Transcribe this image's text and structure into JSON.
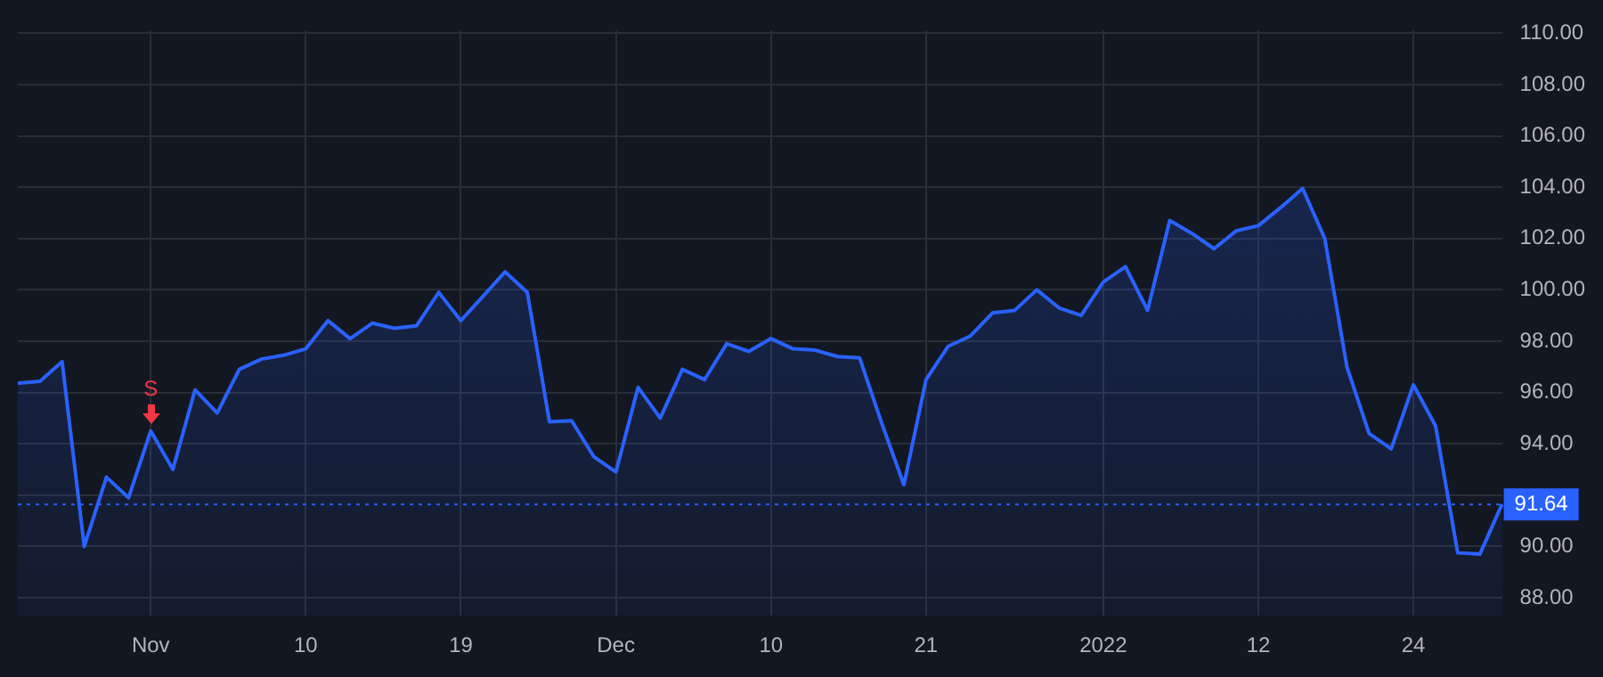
{
  "chart_data": {
    "type": "area",
    "categories": [
      null,
      null,
      null,
      null,
      null,
      null,
      "Nov",
      null,
      null,
      null,
      null,
      null,
      null,
      "10",
      null,
      null,
      null,
      null,
      null,
      null,
      "19",
      null,
      null,
      null,
      null,
      null,
      null,
      "Dec",
      null,
      null,
      null,
      null,
      null,
      null,
      "10",
      null,
      null,
      null,
      null,
      null,
      null,
      "21",
      null,
      null,
      null,
      null,
      null,
      null,
      null,
      "2022",
      null,
      null,
      null,
      null,
      null,
      null,
      "12",
      null,
      null,
      null,
      null,
      null,
      null,
      "24",
      null,
      null,
      null,
      null
    ],
    "series": [
      {
        "color": "#2962ff",
        "values": [
          96.36,
          96.44,
          97.2,
          90.0,
          92.7,
          91.9,
          94.5,
          93.0,
          96.1,
          95.2,
          96.9,
          97.3,
          97.45,
          97.7,
          98.8,
          98.1,
          98.7,
          98.5,
          98.6,
          99.9,
          98.8,
          99.75,
          100.7,
          99.9,
          94.86,
          94.9,
          93.5,
          92.9,
          96.2,
          95.0,
          96.9,
          96.5,
          97.9,
          97.6,
          98.1,
          97.7,
          97.65,
          97.4,
          97.35,
          94.8,
          92.4,
          96.5,
          97.8,
          98.2,
          99.1,
          99.2,
          100.0,
          99.3,
          99.0,
          100.3,
          100.9,
          99.2,
          102.7,
          102.2,
          101.6,
          102.3,
          102.5,
          103.2,
          103.95,
          102.0,
          97.0,
          94.4,
          93.8,
          96.3,
          94.7,
          89.75,
          89.7,
          91.64
        ]
      }
    ],
    "ylim": [
      87.3,
      110.1
    ],
    "yticks": [
      {
        "value": 88,
        "label": "88.00"
      },
      {
        "value": 90,
        "label": "90.00"
      },
      {
        "value": 92,
        "label": null
      },
      {
        "value": 94,
        "label": "94.00"
      },
      {
        "value": 96,
        "label": "96.00"
      },
      {
        "value": 98,
        "label": "98.00"
      },
      {
        "value": 100,
        "label": "100.00"
      },
      {
        "value": 102,
        "label": "102.00"
      },
      {
        "value": 104,
        "label": "104.00"
      },
      {
        "value": 106,
        "label": "106.00"
      },
      {
        "value": 108,
        "label": "108.00"
      },
      {
        "value": 110,
        "label": "110.00"
      }
    ],
    "ref_lines": [
      {
        "axis": "y",
        "value": 91.64,
        "label": "91.64",
        "color": "#2962ff",
        "line_style": "dotted"
      }
    ],
    "annotations": [
      {
        "text": "S",
        "x": "Nov",
        "y": 94.5
      }
    ],
    "grid": true,
    "legend": false,
    "marker": "none",
    "line_style": "solid"
  }
}
